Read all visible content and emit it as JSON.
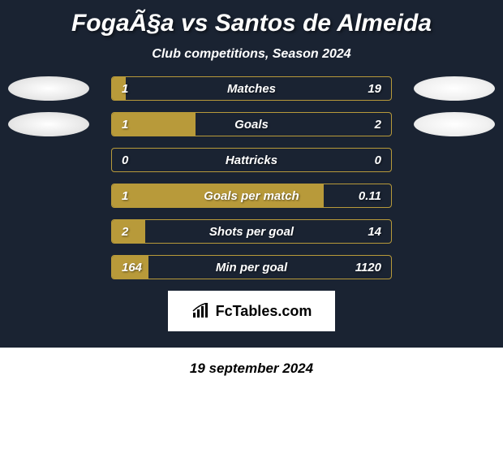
{
  "title": "FogaÃ§a vs Santos de Almeida",
  "subtitle": "Club competitions, Season 2024",
  "date": "19 september 2024",
  "logo_text": "FcTables.com",
  "colors": {
    "background": "#1a2332",
    "bar_fill": "#b89a3a",
    "bar_border": "#b89a3a",
    "text": "#ffffff"
  },
  "stats": [
    {
      "label": "Matches",
      "left_value": "1",
      "right_value": "19",
      "left_pct": 5,
      "right_pct": 0,
      "show_left_ellipse": true,
      "show_right_ellipse": true
    },
    {
      "label": "Goals",
      "left_value": "1",
      "right_value": "2",
      "left_pct": 30,
      "right_pct": 0,
      "show_left_ellipse": true,
      "show_right_ellipse": true
    },
    {
      "label": "Hattricks",
      "left_value": "0",
      "right_value": "0",
      "left_pct": 0,
      "right_pct": 0,
      "show_left_ellipse": false,
      "show_right_ellipse": false
    },
    {
      "label": "Goals per match",
      "left_value": "1",
      "right_value": "0.11",
      "left_pct": 76,
      "right_pct": 0,
      "show_left_ellipse": false,
      "show_right_ellipse": false
    },
    {
      "label": "Shots per goal",
      "left_value": "2",
      "right_value": "14",
      "left_pct": 12,
      "right_pct": 0,
      "show_left_ellipse": false,
      "show_right_ellipse": false
    },
    {
      "label": "Min per goal",
      "left_value": "164",
      "right_value": "1120",
      "left_pct": 13,
      "right_pct": 0,
      "show_left_ellipse": false,
      "show_right_ellipse": false
    }
  ]
}
